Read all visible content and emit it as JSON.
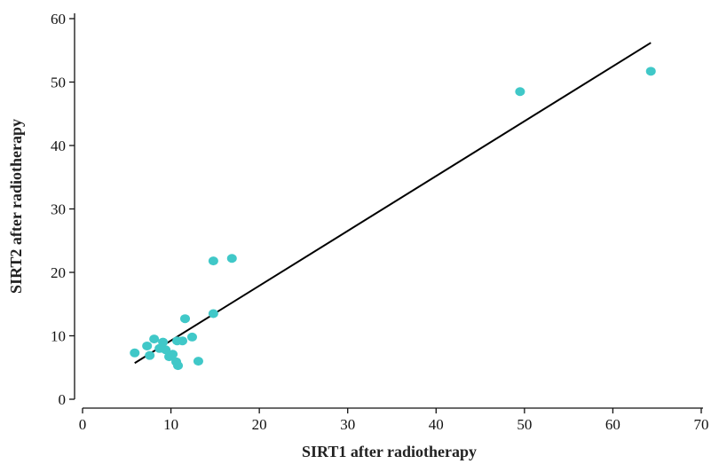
{
  "chart_data": {
    "type": "scatter",
    "title": "",
    "xlabel": "SIRT1 after radiotherapy",
    "ylabel": "SIRT2 after radiotherapy",
    "xlim": [
      0,
      70
    ],
    "ylim": [
      0,
      60
    ],
    "x_ticks": [
      0,
      10,
      20,
      30,
      40,
      50,
      60,
      70
    ],
    "y_ticks": [
      0,
      10,
      20,
      30,
      40,
      50,
      60
    ],
    "grid": false,
    "legend": "none",
    "point_color": "#40c8c8",
    "line_color": "#000000",
    "points": [
      {
        "x": 5.9,
        "y": 7.3
      },
      {
        "x": 7.3,
        "y": 8.4
      },
      {
        "x": 7.6,
        "y": 6.9
      },
      {
        "x": 8.1,
        "y": 9.5
      },
      {
        "x": 8.7,
        "y": 8.0
      },
      {
        "x": 9.1,
        "y": 9.0
      },
      {
        "x": 9.4,
        "y": 7.8
      },
      {
        "x": 9.8,
        "y": 6.7
      },
      {
        "x": 10.2,
        "y": 7.1
      },
      {
        "x": 10.6,
        "y": 5.9
      },
      {
        "x": 10.8,
        "y": 5.3
      },
      {
        "x": 10.7,
        "y": 9.2
      },
      {
        "x": 11.3,
        "y": 9.2
      },
      {
        "x": 11.6,
        "y": 12.7
      },
      {
        "x": 12.4,
        "y": 9.8
      },
      {
        "x": 13.1,
        "y": 6.0
      },
      {
        "x": 14.8,
        "y": 13.5
      },
      {
        "x": 14.8,
        "y": 21.8
      },
      {
        "x": 16.9,
        "y": 22.2
      },
      {
        "x": 49.5,
        "y": 48.5
      },
      {
        "x": 64.3,
        "y": 51.7
      }
    ],
    "fit_line": {
      "x": [
        5.9,
        64.3
      ],
      "y": [
        5.7,
        56.2
      ]
    }
  }
}
